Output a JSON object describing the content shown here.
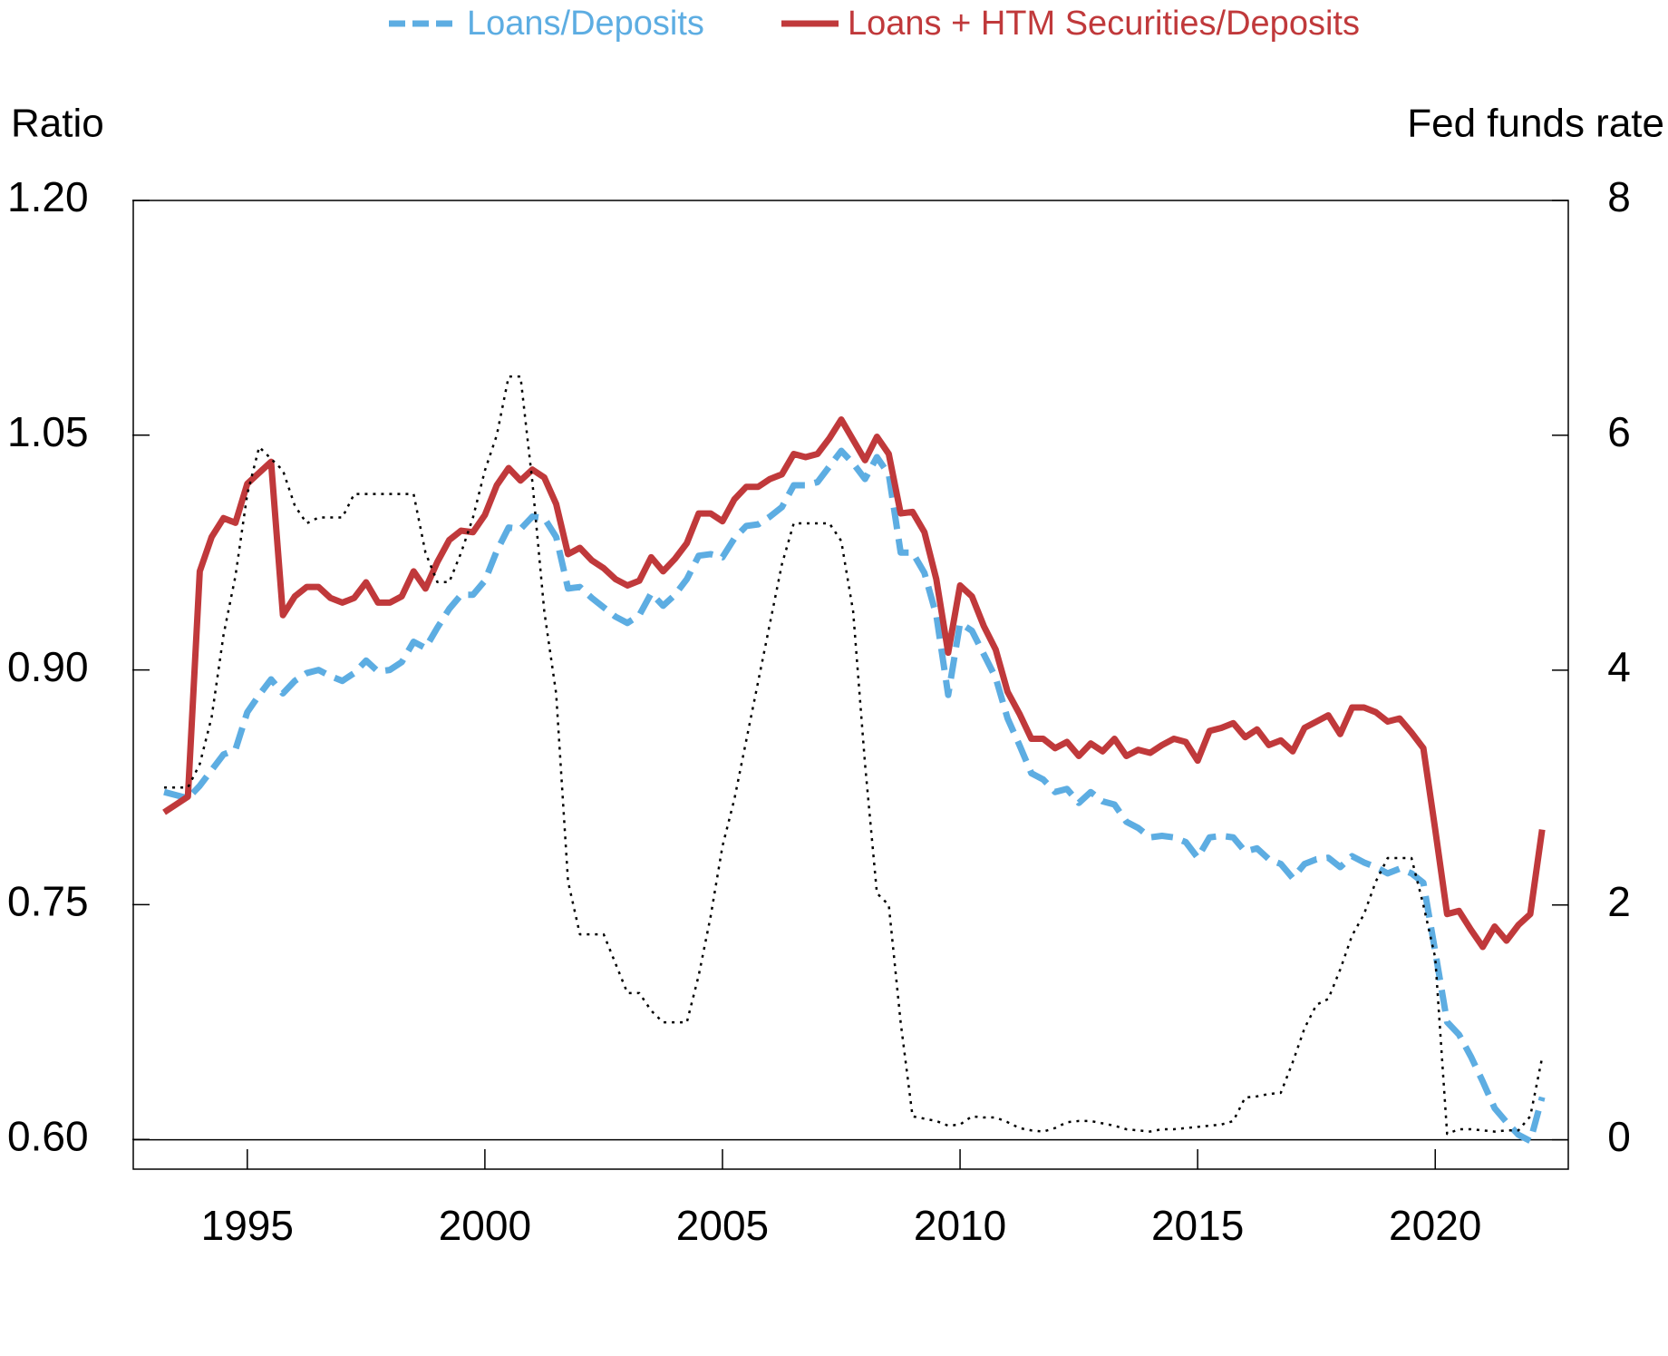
{
  "chart_data": {
    "type": "line",
    "y_label": "Ratio",
    "y2_label": "Fed funds rate",
    "xlim": [
      1992.6,
      2022.8
    ],
    "xticks": [
      1995,
      2000,
      2005,
      2010,
      2015,
      2020
    ],
    "ylim": [
      0.581,
      1.2
    ],
    "yticks": [
      {
        "value": 0.6,
        "label": "0.60"
      },
      0.75,
      {
        "value": 0.9,
        "label": "0.90"
      },
      1.05,
      {
        "value": 1.2,
        "label": "1.20"
      }
    ],
    "y2lim": [
      -0.25,
      8
    ],
    "y2ticks": [
      0,
      2,
      4,
      6,
      8
    ],
    "legend": "top",
    "x": [
      1993.25,
      1993.5,
      1993.75,
      1994,
      1994.25,
      1994.5,
      1994.75,
      1995,
      1995.25,
      1995.5,
      1995.75,
      1996,
      1996.25,
      1996.5,
      1996.75,
      1997,
      1997.25,
      1997.5,
      1997.75,
      1998,
      1998.25,
      1998.5,
      1998.75,
      1999,
      1999.25,
      1999.5,
      1999.75,
      2000,
      2000.25,
      2000.5,
      2000.75,
      2001,
      2001.25,
      2001.5,
      2001.75,
      2002,
      2002.25,
      2002.5,
      2002.75,
      2003,
      2003.25,
      2003.5,
      2003.75,
      2004,
      2004.25,
      2004.5,
      2004.75,
      2005,
      2005.25,
      2005.5,
      2005.75,
      2006,
      2006.25,
      2006.5,
      2006.75,
      2007,
      2007.25,
      2007.5,
      2007.75,
      2008,
      2008.25,
      2008.5,
      2008.75,
      2009,
      2009.25,
      2009.5,
      2009.75,
      2010,
      2010.25,
      2010.5,
      2010.75,
      2011,
      2011.25,
      2011.5,
      2011.75,
      2012,
      2012.25,
      2012.5,
      2012.75,
      2013,
      2013.25,
      2013.5,
      2013.75,
      2014,
      2014.25,
      2014.5,
      2014.75,
      2015,
      2015.25,
      2015.5,
      2015.75,
      2016,
      2016.25,
      2016.5,
      2016.75,
      2017,
      2017.25,
      2017.5,
      2017.75,
      2018,
      2018.25,
      2018.5,
      2018.75,
      2019,
      2019.25,
      2019.5,
      2019.75,
      2020,
      2020.25,
      2020.5,
      2020.75,
      2021,
      2021.25,
      2021.5,
      2021.75,
      2022,
      2022.25
    ],
    "series": [
      {
        "name": "Loans/Deposits",
        "color": "#5dade2",
        "style": "dashed",
        "values": [
          0.822,
          0.82,
          0.818,
          0.826,
          0.836,
          0.846,
          0.849,
          0.873,
          0.884,
          0.894,
          0.885,
          0.893,
          0.898,
          0.9,
          0.896,
          0.893,
          0.898,
          0.906,
          0.899,
          0.9,
          0.905,
          0.918,
          0.914,
          0.927,
          0.939,
          0.948,
          0.948,
          0.957,
          0.976,
          0.991,
          0.99,
          0.998,
          0.997,
          0.985,
          0.952,
          0.953,
          0.946,
          0.94,
          0.934,
          0.93,
          0.935,
          0.949,
          0.941,
          0.948,
          0.958,
          0.973,
          0.974,
          0.972,
          0.984,
          0.992,
          0.993,
          0.998,
          1.004,
          1.018,
          1.018,
          1.02,
          1.03,
          1.04,
          1.032,
          1.022,
          1.036,
          1.025,
          0.975,
          0.975,
          0.962,
          0.935,
          0.884,
          0.93,
          0.925,
          0.91,
          0.895,
          0.869,
          0.852,
          0.834,
          0.83,
          0.822,
          0.824,
          0.815,
          0.822,
          0.816,
          0.814,
          0.803,
          0.799,
          0.793,
          0.794,
          0.793,
          0.79,
          0.78,
          0.793,
          0.794,
          0.793,
          0.784,
          0.786,
          0.779,
          0.776,
          0.767,
          0.776,
          0.779,
          0.78,
          0.774,
          0.781,
          0.777,
          0.774,
          0.77,
          0.773,
          0.77,
          0.764,
          0.72,
          0.675,
          0.667,
          0.653,
          0.637,
          0.62,
          0.611,
          0.603,
          0.599,
          0.627
        ]
      },
      {
        "name": "Loans + HTM Securities/Deposits",
        "color": "#c0393b",
        "style": "solid",
        "values": [
          0.809,
          0.814,
          0.819,
          0.963,
          0.985,
          0.997,
          0.994,
          1.019,
          1.026,
          1.033,
          0.935,
          0.947,
          0.953,
          0.953,
          0.946,
          0.943,
          0.946,
          0.956,
          0.943,
          0.943,
          0.947,
          0.963,
          0.952,
          0.969,
          0.983,
          0.989,
          0.988,
          0.999,
          1.018,
          1.029,
          1.021,
          1.028,
          1.023,
          1.006,
          0.974,
          0.978,
          0.97,
          0.965,
          0.958,
          0.954,
          0.957,
          0.972,
          0.963,
          0.971,
          0.981,
          1.0,
          1.0,
          0.995,
          1.009,
          1.017,
          1.017,
          1.022,
          1.025,
          1.038,
          1.036,
          1.038,
          1.048,
          1.06,
          1.047,
          1.034,
          1.049,
          1.038,
          1.0,
          1.001,
          0.988,
          0.958,
          0.911,
          0.954,
          0.947,
          0.928,
          0.913,
          0.886,
          0.872,
          0.856,
          0.856,
          0.85,
          0.854,
          0.845,
          0.853,
          0.848,
          0.856,
          0.845,
          0.849,
          0.847,
          0.852,
          0.856,
          0.854,
          0.842,
          0.861,
          0.863,
          0.866,
          0.857,
          0.862,
          0.852,
          0.855,
          0.848,
          0.863,
          0.867,
          0.871,
          0.859,
          0.876,
          0.876,
          0.873,
          0.867,
          0.869,
          0.86,
          0.85,
          0.798,
          0.744,
          0.746,
          0.734,
          0.723,
          0.736,
          0.727,
          0.737,
          0.744,
          0.798
        ]
      },
      {
        "color": "#000000",
        "style": "dotted",
        "axis": "y2",
        "values": [
          3.0,
          3.0,
          3.0,
          3.2,
          3.6,
          4.3,
          4.8,
          5.5,
          5.9,
          5.8,
          5.7,
          5.4,
          5.25,
          5.3,
          5.3,
          5.3,
          5.5,
          5.5,
          5.5,
          5.5,
          5.5,
          5.5,
          5.0,
          4.75,
          4.75,
          5.0,
          5.3,
          5.7,
          6.0,
          6.5,
          6.5,
          5.6,
          4.5,
          3.8,
          2.2,
          1.75,
          1.75,
          1.75,
          1.5,
          1.25,
          1.25,
          1.1,
          1.0,
          1.0,
          1.0,
          1.4,
          1.9,
          2.5,
          2.9,
          3.4,
          3.9,
          4.4,
          4.9,
          5.25,
          5.25,
          5.25,
          5.25,
          5.1,
          4.5,
          3.2,
          2.1,
          2.0,
          1.0,
          0.2,
          0.18,
          0.16,
          0.12,
          0.13,
          0.2,
          0.19,
          0.19,
          0.15,
          0.1,
          0.08,
          0.07,
          0.1,
          0.15,
          0.16,
          0.16,
          0.14,
          0.12,
          0.09,
          0.08,
          0.07,
          0.09,
          0.09,
          0.1,
          0.11,
          0.12,
          0.13,
          0.16,
          0.36,
          0.37,
          0.39,
          0.4,
          0.66,
          0.95,
          1.15,
          1.2,
          1.45,
          1.74,
          1.92,
          2.2,
          2.4,
          2.4,
          2.4,
          2.0,
          1.55,
          0.05,
          0.09,
          0.09,
          0.08,
          0.07,
          0.08,
          0.08,
          0.2,
          0.7
        ]
      }
    ]
  }
}
